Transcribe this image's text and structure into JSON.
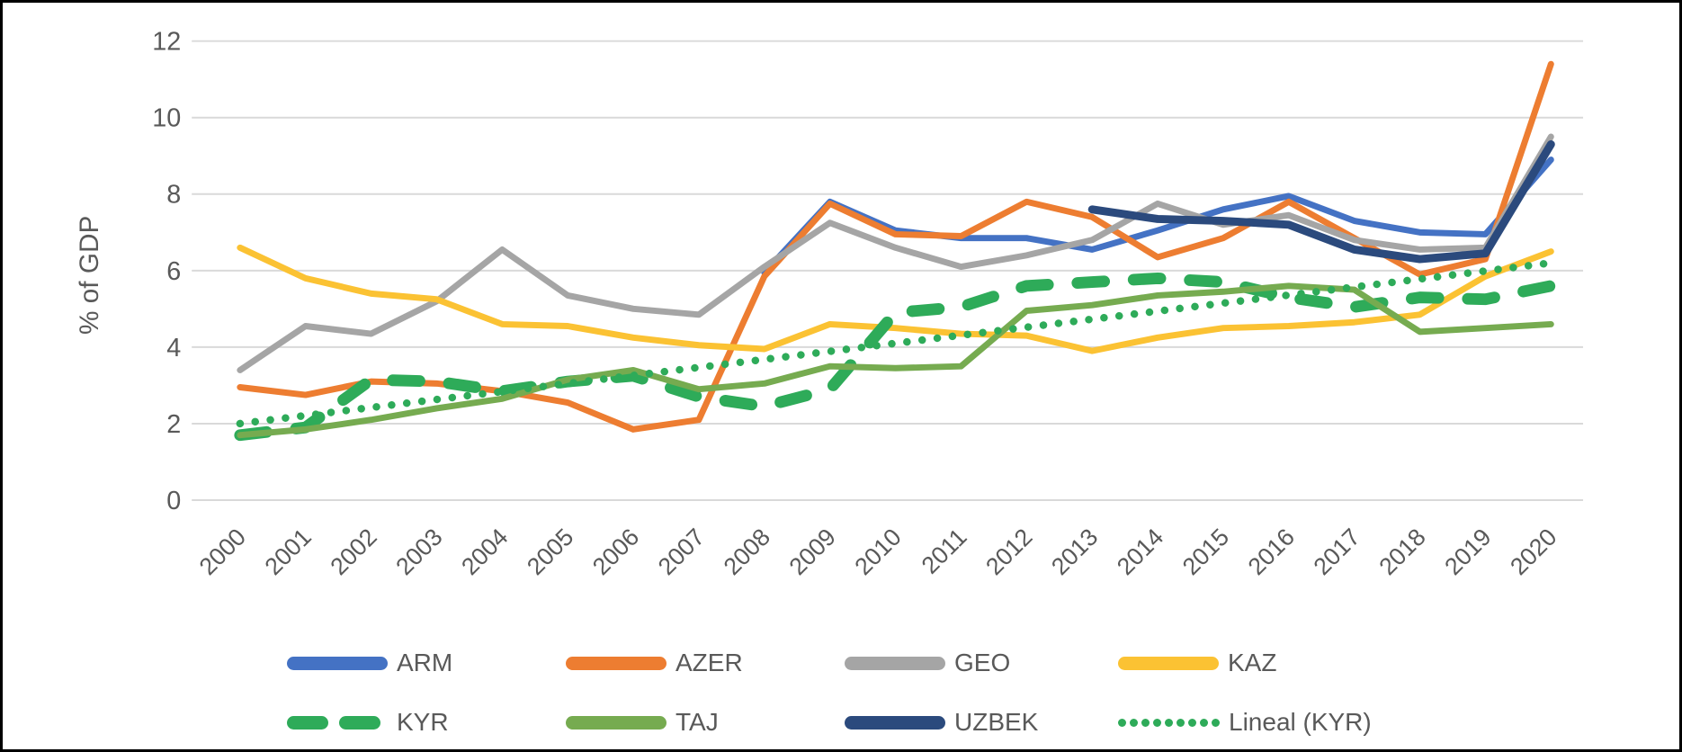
{
  "chart": {
    "background": "#ffffff",
    "border_color": "#000000",
    "text_color": "#595959",
    "grid_color": "#d9d9d9",
    "y_axis": {
      "title": "% of GDP",
      "tick_labels": [
        "0",
        "2",
        "4",
        "6",
        "8",
        "10",
        "12"
      ],
      "tick_values": [
        0,
        2,
        4,
        6,
        8,
        10,
        12
      ],
      "range": [
        0,
        12
      ]
    },
    "x_axis": {
      "labels": [
        "2000",
        "2001",
        "2002",
        "2003",
        "2004",
        "2005",
        "2006",
        "2007",
        "2008",
        "2009",
        "2010",
        "2011",
        "2012",
        "2013",
        "2014",
        "2015",
        "2016",
        "2017",
        "2018",
        "2019",
        "2020"
      ]
    }
  },
  "legend": {
    "rows": [
      [
        {
          "id": "ARM",
          "label": "ARM",
          "swatch": "solid",
          "color": "#4472C4"
        },
        {
          "id": "AZER",
          "label": "AZER",
          "swatch": "solid",
          "color": "#ED7D31"
        },
        {
          "id": "GEO",
          "label": "GEO",
          "swatch": "solid",
          "color": "#A5A5A5"
        },
        {
          "id": "KAZ",
          "label": "KAZ",
          "swatch": "solid",
          "color": "#FBC233"
        }
      ],
      [
        {
          "id": "KYR",
          "label": "KYR",
          "swatch": "dashed",
          "color": "#2EAB59"
        },
        {
          "id": "TAJ",
          "label": "TAJ",
          "swatch": "solid",
          "color": "#76AB50"
        },
        {
          "id": "UZBEK",
          "label": "UZBEK",
          "swatch": "solid",
          "color": "#2B4A7D"
        },
        {
          "id": "LINEAL_KYR",
          "label": "Lineal (KYR)",
          "swatch": "dotted",
          "color": "#2EAB59"
        }
      ]
    ]
  },
  "chart_data": {
    "type": "line",
    "title": "",
    "xlabel": "",
    "ylabel": "% of GDP",
    "ylim": [
      0,
      12
    ],
    "grid": true,
    "legend_position": "bottom",
    "x": [
      2000,
      2001,
      2002,
      2003,
      2004,
      2005,
      2006,
      2007,
      2008,
      2009,
      2010,
      2011,
      2012,
      2013,
      2014,
      2015,
      2016,
      2017,
      2018,
      2019,
      2020
    ],
    "series": [
      {
        "name": "ARM",
        "color": "#4472C4",
        "style": "solid",
        "values": [
          null,
          null,
          null,
          null,
          null,
          null,
          null,
          null,
          5.95,
          7.8,
          7.05,
          6.85,
          6.85,
          6.55,
          7.05,
          7.6,
          7.95,
          7.3,
          7.0,
          6.95,
          8.9
        ]
      },
      {
        "name": "AZER",
        "color": "#ED7D31",
        "style": "solid",
        "values": [
          2.95,
          2.75,
          3.1,
          3.05,
          2.85,
          2.55,
          1.85,
          2.1,
          5.85,
          7.75,
          6.95,
          6.9,
          7.8,
          7.4,
          6.35,
          6.85,
          7.8,
          6.85,
          5.9,
          6.3,
          11.4
        ]
      },
      {
        "name": "GEO",
        "color": "#A5A5A5",
        "style": "solid",
        "values": [
          3.4,
          4.55,
          4.35,
          5.2,
          6.55,
          5.35,
          5.0,
          4.85,
          6.1,
          7.25,
          6.6,
          6.1,
          6.4,
          6.8,
          7.75,
          7.2,
          7.45,
          6.8,
          6.55,
          6.6,
          9.5
        ]
      },
      {
        "name": "KAZ",
        "color": "#FBC233",
        "style": "solid",
        "values": [
          6.6,
          5.8,
          5.4,
          5.25,
          4.6,
          4.55,
          4.25,
          4.05,
          3.95,
          4.6,
          4.5,
          4.35,
          4.3,
          3.9,
          4.25,
          4.5,
          4.55,
          4.65,
          4.85,
          5.85,
          6.5
        ]
      },
      {
        "name": "KYR",
        "color": "#2EAB59",
        "style": "dashed",
        "values": [
          1.7,
          1.9,
          3.15,
          3.1,
          2.85,
          3.1,
          3.25,
          2.7,
          2.45,
          2.9,
          4.9,
          5.05,
          5.6,
          5.7,
          5.8,
          5.7,
          5.3,
          5.05,
          5.3,
          5.25,
          5.6
        ]
      },
      {
        "name": "TAJ",
        "color": "#76AB50",
        "style": "solid",
        "values": [
          1.7,
          1.85,
          2.1,
          2.4,
          2.65,
          3.15,
          3.4,
          2.9,
          3.05,
          3.5,
          3.45,
          3.5,
          4.95,
          5.1,
          5.35,
          5.45,
          5.6,
          5.5,
          4.4,
          4.5,
          4.6
        ]
      },
      {
        "name": "UZBEK",
        "color": "#2B4A7D",
        "style": "solid",
        "values": [
          null,
          null,
          null,
          null,
          null,
          null,
          null,
          null,
          null,
          null,
          null,
          null,
          null,
          7.6,
          7.35,
          7.3,
          7.2,
          6.55,
          6.3,
          6.45,
          9.3
        ]
      },
      {
        "name": "Lineal (KYR)",
        "color": "#2EAB59",
        "style": "dotted",
        "values": [
          2.0,
          2.21,
          2.42,
          2.63,
          2.84,
          3.05,
          3.26,
          3.47,
          3.68,
          3.89,
          4.1,
          4.31,
          4.52,
          4.73,
          4.94,
          5.15,
          5.36,
          5.57,
          5.78,
          5.99,
          6.2
        ]
      }
    ]
  }
}
